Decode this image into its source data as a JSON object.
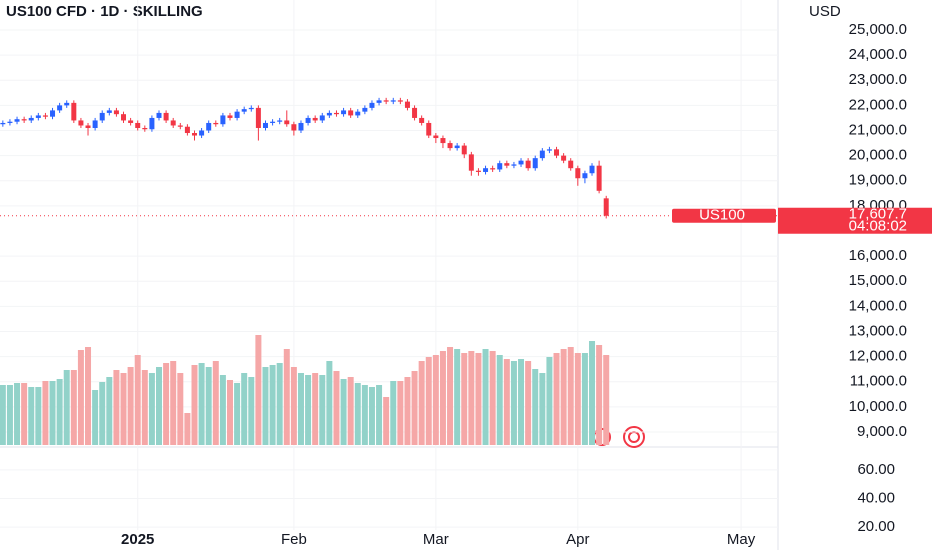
{
  "chart_data": {
    "type": "candlestick",
    "title": "US100 CFD · 1D · SKILLING",
    "currency": "USD",
    "up_color": "#2962ff",
    "down_color": "#f23645",
    "volume_up_color": "#92d2c9",
    "volume_down_color": "#f5a7a7",
    "grid": true,
    "xlim": [
      -0.4,
      109.2
    ],
    "xticks": [
      {
        "value": 19,
        "label": "2025"
      },
      {
        "value": 41,
        "label": "Feb"
      },
      {
        "value": 61,
        "label": "Mar"
      },
      {
        "value": 81,
        "label": "Apr"
      },
      {
        "value": 104,
        "label": "May"
      }
    ],
    "ylim": [
      8483,
      26194
    ],
    "yticks": [
      {
        "value": 25000,
        "label": "25,000.0"
      },
      {
        "value": 24000,
        "label": "24,000.0"
      },
      {
        "value": 23000,
        "label": "23,000.0"
      },
      {
        "value": 22000,
        "label": "22,000.0"
      },
      {
        "value": 21000,
        "label": "21,000.0"
      },
      {
        "value": 20000,
        "label": "20,000.0"
      },
      {
        "value": 19000,
        "label": "19,000.0"
      },
      {
        "value": 18000,
        "label": "18,000.0"
      },
      {
        "value": 16000,
        "label": "16,000.0"
      },
      {
        "value": 15000,
        "label": "15,000.0"
      },
      {
        "value": 14000,
        "label": "14,000.0"
      },
      {
        "value": 13000,
        "label": "13,000.0"
      },
      {
        "value": 12000,
        "label": "12,000.0"
      },
      {
        "value": 11000,
        "label": "11,000.0"
      },
      {
        "value": 10000,
        "label": "10,000.0"
      },
      {
        "value": 9000,
        "label": "9,000.0"
      }
    ],
    "open": [
      21250,
      21300,
      21350,
      21450,
      21400,
      21500,
      21600,
      21550,
      21800,
      22000,
      22100,
      21400,
      21200,
      21100,
      21400,
      21700,
      21800,
      21650,
      21400,
      21300,
      21100,
      21050,
      21500,
      21700,
      21400,
      21200,
      21150,
      20900,
      20800,
      21000,
      21300,
      21250,
      21600,
      21500,
      21750,
      21850,
      21900,
      21100,
      21300,
      21350,
      21400,
      21250,
      21000,
      21300,
      21500,
      21400,
      21600,
      21700,
      21650,
      21800,
      21600,
      21750,
      21900,
      22100,
      22200,
      22150,
      22200,
      22150,
      21900,
      21500,
      21300,
      20800,
      20700,
      20500,
      20300,
      20400,
      20050,
      19400,
      19350,
      19500,
      19450,
      19700,
      19600,
      19650,
      19800,
      19500,
      19900,
      20200,
      20250,
      20000,
      19800,
      19500,
      19100,
      19300,
      19600,
      18300
    ],
    "high": [
      21400,
      21450,
      21550,
      21550,
      21600,
      21700,
      21700,
      21900,
      22100,
      22200,
      22200,
      21500,
      21300,
      21500,
      21800,
      21900,
      21900,
      21750,
      21500,
      21400,
      21200,
      21600,
      21800,
      21800,
      21500,
      21300,
      21250,
      21000,
      21100,
      21400,
      21400,
      21700,
      21700,
      21850,
      21950,
      22000,
      22000,
      21400,
      21450,
      21500,
      21800,
      21350,
      21400,
      21600,
      21600,
      21700,
      21800,
      21800,
      21900,
      21900,
      21850,
      22000,
      22200,
      22300,
      22300,
      22300,
      22300,
      22250,
      22000,
      21600,
      21400,
      20900,
      20800,
      20600,
      20500,
      20500,
      20150,
      19500,
      19600,
      19600,
      19800,
      19800,
      19750,
      19900,
      19900,
      20000,
      20300,
      20350,
      20350,
      20100,
      19900,
      19600,
      19400,
      19700,
      19800,
      18400
    ],
    "low": [
      21150,
      21200,
      21250,
      21300,
      21300,
      21400,
      21450,
      21450,
      21700,
      21900,
      21300,
      21100,
      20800,
      21000,
      21300,
      21600,
      21550,
      21300,
      21200,
      21000,
      20950,
      20950,
      21400,
      21300,
      21100,
      21050,
      20800,
      20600,
      20700,
      20900,
      21150,
      21150,
      21400,
      21400,
      21650,
      21750,
      20600,
      21000,
      21200,
      21250,
      21150,
      20800,
      20900,
      21200,
      21300,
      21300,
      21500,
      21550,
      21550,
      21500,
      21500,
      21650,
      21800,
      22000,
      22050,
      22050,
      22050,
      21800,
      21400,
      21200,
      20700,
      20500,
      20300,
      20200,
      20200,
      19900,
      19200,
      19200,
      19250,
      19350,
      19350,
      19500,
      19500,
      19550,
      19400,
      19400,
      19800,
      20100,
      19900,
      19700,
      19400,
      18800,
      18900,
      19200,
      18500,
      17500
    ],
    "close": [
      21300,
      21350,
      21450,
      21400,
      21500,
      21600,
      21550,
      21800,
      22000,
      22100,
      21400,
      21200,
      21100,
      21400,
      21700,
      21800,
      21650,
      21400,
      21300,
      21100,
      21050,
      21500,
      21700,
      21400,
      21200,
      21150,
      20900,
      20800,
      21000,
      21300,
      21250,
      21600,
      21500,
      21750,
      21850,
      21900,
      21100,
      21300,
      21350,
      21400,
      21250,
      21000,
      21300,
      21500,
      21400,
      21600,
      21700,
      21650,
      21800,
      21600,
      21750,
      21900,
      22100,
      22200,
      22150,
      22200,
      22150,
      21900,
      21500,
      21300,
      20800,
      20700,
      20500,
      20300,
      20400,
      20050,
      19400,
      19350,
      19500,
      19450,
      19700,
      19600,
      19650,
      19800,
      19500,
      19900,
      20200,
      20250,
      20000,
      19800,
      19500,
      19100,
      19300,
      19600,
      18600,
      17607.7
    ],
    "volume": [
      60,
      60,
      62,
      62,
      58,
      58,
      64,
      64,
      66,
      75,
      75,
      95,
      98,
      55,
      63,
      68,
      75,
      72,
      78,
      90,
      75,
      72,
      78,
      82,
      84,
      72,
      32,
      80,
      82,
      78,
      84,
      70,
      65,
      62,
      72,
      68,
      110,
      78,
      80,
      82,
      96,
      78,
      72,
      70,
      72,
      70,
      84,
      74,
      66,
      68,
      62,
      60,
      58,
      60,
      48,
      64,
      64,
      68,
      74,
      84,
      88,
      90,
      94,
      98,
      96,
      92,
      94,
      92,
      96,
      94,
      90,
      86,
      84,
      86,
      84,
      76,
      72,
      88,
      92,
      96,
      98,
      92,
      92,
      104,
      100,
      90
    ],
    "symbol_tag": "US100",
    "last_price": {
      "value": 17607.7,
      "label": "17,607.7"
    },
    "countdown": "04:08:02",
    "lower_pane": {
      "ylim": [
        18,
        76
      ],
      "yticks": [
        {
          "value": 60,
          "label": "60.00"
        },
        {
          "value": 40,
          "label": "40.00"
        },
        {
          "value": 20,
          "label": "20.00"
        }
      ]
    }
  }
}
